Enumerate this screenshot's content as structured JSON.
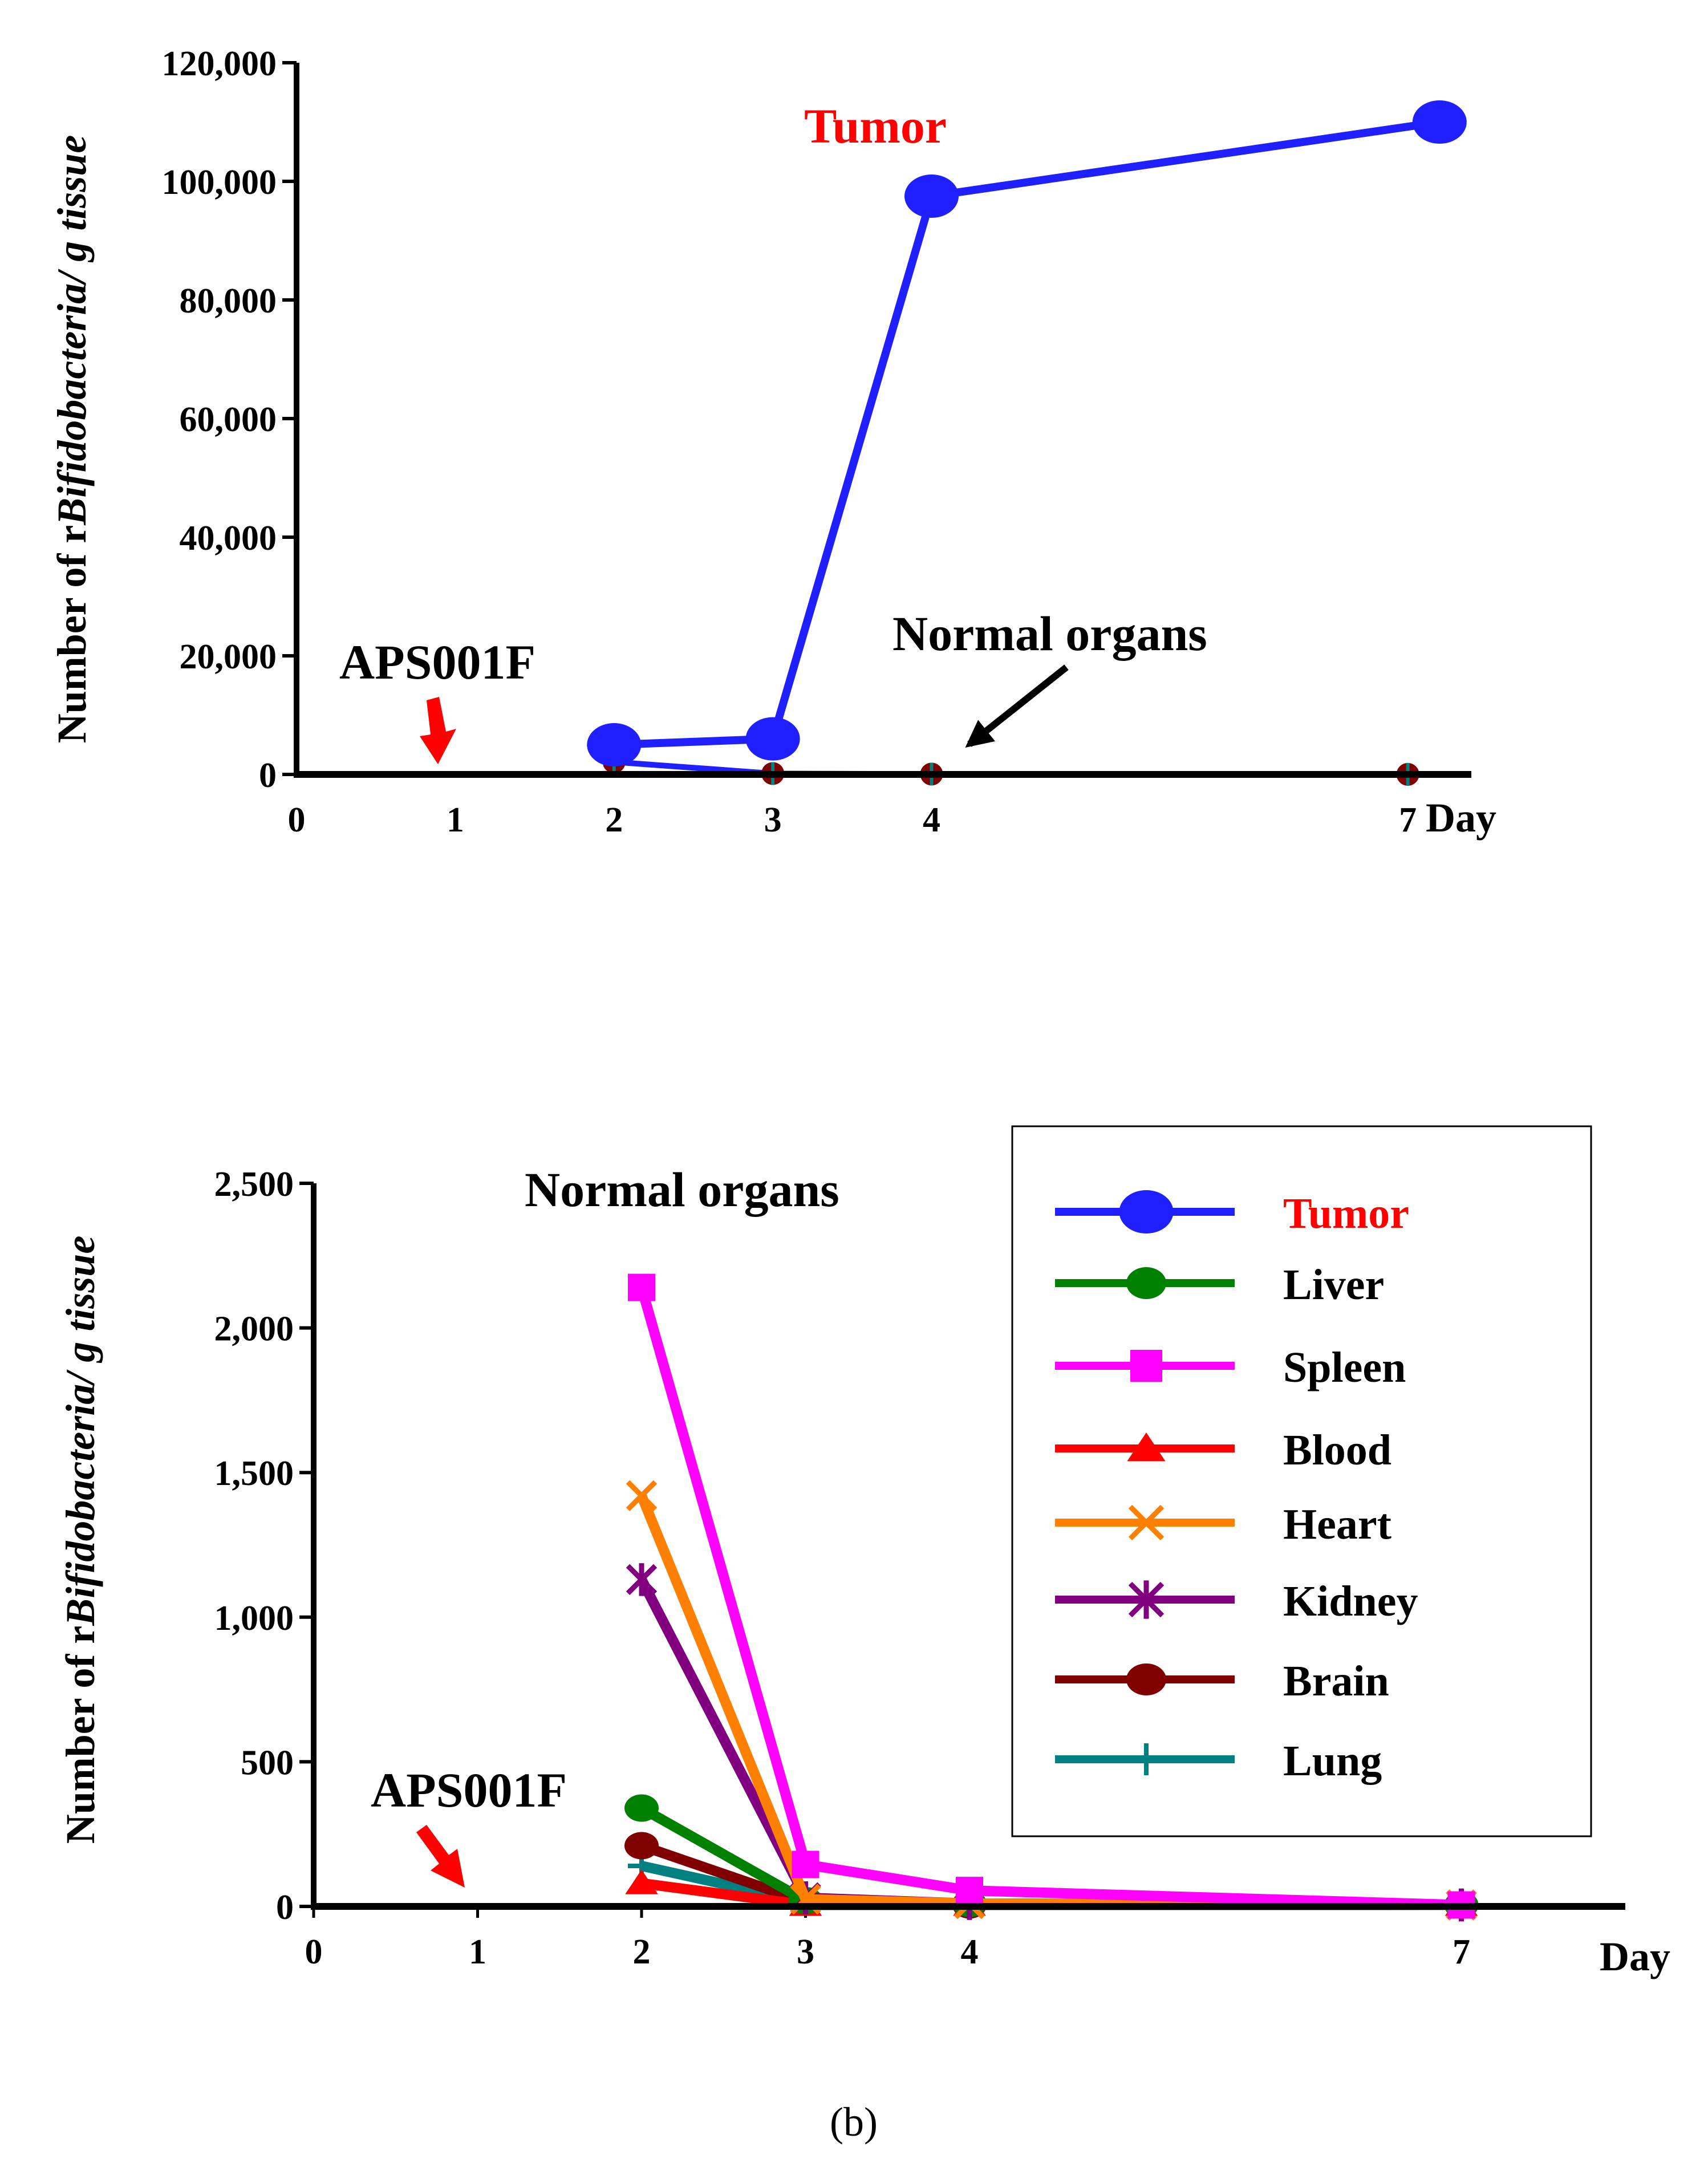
{
  "figure_label": "(b)",
  "chart_data": [
    {
      "type": "line",
      "ylabel_prefix": "Number of r",
      "ylabel_italic": "Bifidobacteria/ g tissue",
      "xlabel": "Day",
      "x_ticks": [
        0,
        1,
        2,
        3,
        4,
        7
      ],
      "y_ticks": [
        0,
        20000,
        40000,
        60000,
        80000,
        100000,
        120000
      ],
      "y_tick_labels": [
        "0",
        "20,000",
        "40,000",
        "60,000",
        "80,000",
        "100,000",
        "120,000"
      ],
      "ylim": [
        0,
        120000
      ],
      "xlim": [
        0,
        7.4
      ],
      "series": [
        {
          "name": "Tumor",
          "color": "#1f1fff",
          "marker": "circle",
          "x": [
            2,
            3,
            4,
            7.2
          ],
          "values": [
            5000,
            6000,
            97500,
            110000
          ]
        },
        {
          "name": "Normal organs",
          "color": "#1f1fff",
          "marker": "cross",
          "x": [
            2,
            3,
            4,
            7
          ],
          "values": [
            2100,
            150,
            60,
            10
          ]
        }
      ],
      "annotations": {
        "tumor_label": "Tumor",
        "normal_label": "Normal organs",
        "dose_label": "APS001F"
      }
    },
    {
      "type": "line",
      "title": "Normal organs",
      "ylabel_prefix": "Number of r",
      "ylabel_italic": "Bifidobacteria/ g tissue",
      "xlabel": "Day",
      "x_ticks": [
        0,
        1,
        2,
        3,
        4,
        7
      ],
      "y_ticks": [
        0,
        500,
        1000,
        1500,
        2000,
        2500
      ],
      "y_tick_labels": [
        "0",
        "500",
        "1,000",
        "1,500",
        "2,000",
        "2,500"
      ],
      "ylim": [
        0,
        2500
      ],
      "xlim": [
        0,
        8
      ],
      "legend_position": "top-right",
      "series": [
        {
          "name": "Tumor",
          "color": "#1f1fff",
          "marker": "circle",
          "x": [],
          "values": []
        },
        {
          "name": "Liver",
          "color": "#008000",
          "marker": "circle",
          "x": [
            2,
            3,
            4,
            7
          ],
          "values": [
            340,
            20,
            10,
            5
          ]
        },
        {
          "name": "Spleen",
          "color": "#ff00ff",
          "marker": "square",
          "x": [
            2,
            3,
            4,
            7
          ],
          "values": [
            2140,
            145,
            55,
            5
          ]
        },
        {
          "name": "Blood",
          "color": "#ff0000",
          "marker": "triangle",
          "x": [
            2,
            3,
            4,
            7
          ],
          "values": [
            80,
            5,
            5,
            5
          ]
        },
        {
          "name": "Heart",
          "color": "#ff7f00",
          "marker": "x",
          "x": [
            2,
            3,
            4,
            7
          ],
          "values": [
            1420,
            25,
            10,
            5
          ]
        },
        {
          "name": "Kidney",
          "color": "#800080",
          "marker": "star",
          "x": [
            2,
            3,
            4,
            7
          ],
          "values": [
            1130,
            30,
            10,
            5
          ]
        },
        {
          "name": "Brain",
          "color": "#800000",
          "marker": "circle",
          "x": [
            2,
            3,
            4,
            7
          ],
          "values": [
            210,
            15,
            5,
            5
          ]
        },
        {
          "name": "Lung",
          "color": "#008080",
          "marker": "plus",
          "x": [
            2,
            3,
            4,
            7
          ],
          "values": [
            140,
            15,
            5,
            5
          ]
        }
      ],
      "annotations": {
        "dose_label": "APS001F"
      }
    }
  ]
}
